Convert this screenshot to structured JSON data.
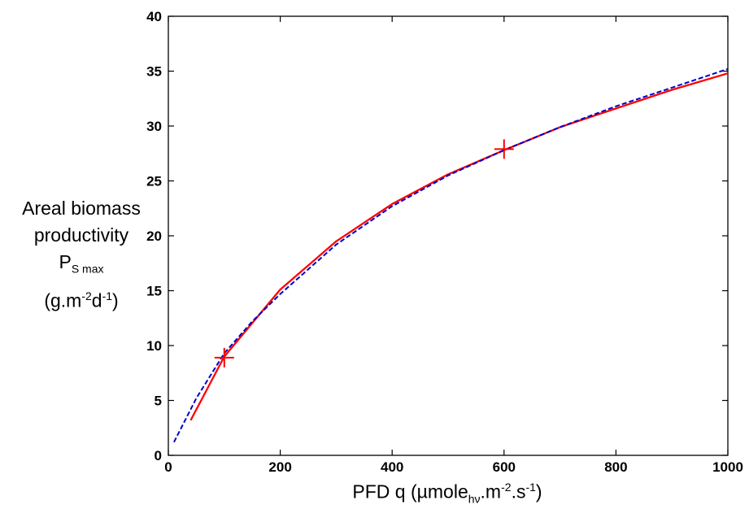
{
  "chart_data": {
    "type": "line",
    "xlim": [
      0,
      1000
    ],
    "ylim": [
      0,
      40
    ],
    "xticks": [
      0,
      200,
      400,
      600,
      800,
      1000
    ],
    "yticks": [
      0,
      5,
      10,
      15,
      20,
      25,
      30,
      35,
      40
    ],
    "grid": false,
    "legend": "none",
    "ylabel": {
      "line1": "Areal biomass",
      "line2": "productivity",
      "line3_main": "P",
      "line3_sub": "S max",
      "line4_a": "(g.m",
      "line4_sup1": "-2",
      "line4_b": "d",
      "line4_sup2": "-1",
      "line4_c": ")"
    },
    "xlabel": {
      "a": "PFD q (µmole",
      "sub": "hν",
      "b": ".m",
      "sup1": "-2",
      "c": ".s",
      "sup2": "-1",
      "d": ")"
    },
    "series": [
      {
        "color": "#ff0000",
        "style": "solid",
        "x": [
          40,
          100,
          200,
          300,
          400,
          500,
          600,
          700,
          800,
          900,
          1000
        ],
        "y": [
          3.2,
          9.0,
          15.1,
          19.5,
          22.9,
          25.6,
          27.8,
          29.9,
          31.6,
          33.3,
          34.8
        ]
      },
      {
        "color": "#0000cc",
        "style": "dashed",
        "x": [
          10,
          50,
          100,
          150,
          200,
          300,
          400,
          500,
          600,
          700,
          800,
          900,
          1000
        ],
        "y": [
          1.2,
          5.2,
          9.3,
          12.2,
          14.7,
          19.2,
          22.7,
          25.5,
          27.8,
          29.9,
          31.8,
          33.5,
          35.2
        ]
      }
    ],
    "markers": [
      {
        "x": 100,
        "y": 8.9,
        "color": "#ff0000",
        "symbol": "+"
      },
      {
        "x": 600,
        "y": 27.9,
        "color": "#ff0000",
        "symbol": "+"
      }
    ]
  }
}
